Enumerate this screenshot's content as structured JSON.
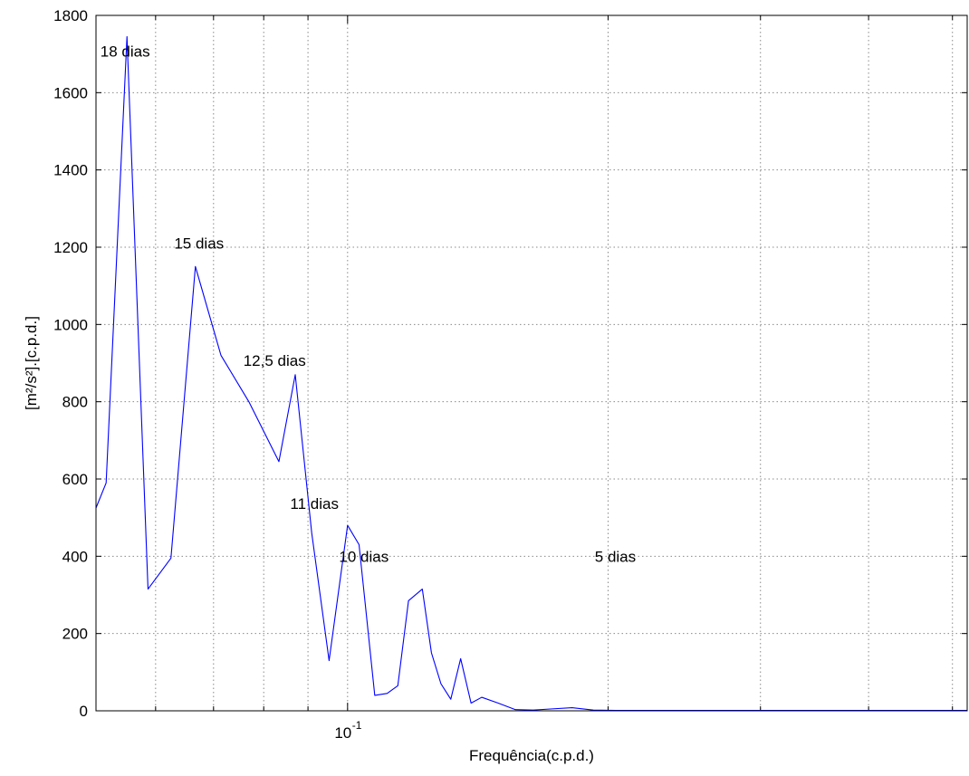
{
  "chart_data": {
    "type": "line",
    "title": "",
    "xlabel": "Frequência(c.p.d.)",
    "ylabel": "[m²/s²].[c.p.d.]",
    "xscale": "log",
    "xlim": [
      0.0512,
      0.52
    ],
    "ylim": [
      0,
      1800
    ],
    "grid": true,
    "yticks": [
      "0",
      "200",
      "400",
      "600",
      "800",
      "1000",
      "1200",
      "1400",
      "1600",
      "1800"
    ],
    "xtick_label": {
      "base": "10",
      "exponent": "-1",
      "value": 0.1
    },
    "series": [
      {
        "color": "#0000ff",
        "x": [
          0.0512,
          0.0526,
          0.0556,
          0.0588,
          0.0625,
          0.0667,
          0.0714,
          0.0769,
          0.0833,
          0.087,
          0.0909,
          0.0952,
          0.1,
          0.1031,
          0.1075,
          0.1111,
          0.1143,
          0.1176,
          0.122,
          0.125,
          0.1282,
          0.1316,
          0.1351,
          0.1389,
          0.1429,
          0.1493,
          0.1563,
          0.1639,
          0.1724,
          0.1818,
          0.1923,
          0.2041,
          0.2174,
          0.2326,
          0.25,
          0.2703,
          0.2941,
          0.3226,
          0.3571,
          0.4,
          0.4545,
          0.52
        ],
        "y": [
          525,
          590,
          1745,
          315,
          395,
          1150,
          920,
          800,
          645,
          870,
          460,
          130,
          480,
          430,
          40,
          45,
          65,
          285,
          315,
          150,
          70,
          30,
          135,
          20,
          35,
          20,
          3,
          2,
          5,
          8,
          2,
          1,
          1,
          1,
          1,
          1,
          1,
          1,
          1,
          1,
          1,
          1
        ]
      }
    ],
    "annotations": [
      {
        "text": "18 dias",
        "x": 0.0556,
        "y": 1745
      },
      {
        "text": "15 dias",
        "x": 0.0667,
        "y": 1150
      },
      {
        "text": "12,5 dias",
        "x": 0.08,
        "y": 870
      },
      {
        "text": "11 dias",
        "x": 0.0909,
        "y": 480
      },
      {
        "text": "10 dias",
        "x": 0.1,
        "y": 400
      },
      {
        "text": "5 dias",
        "x": 0.2,
        "y": 400
      }
    ]
  }
}
